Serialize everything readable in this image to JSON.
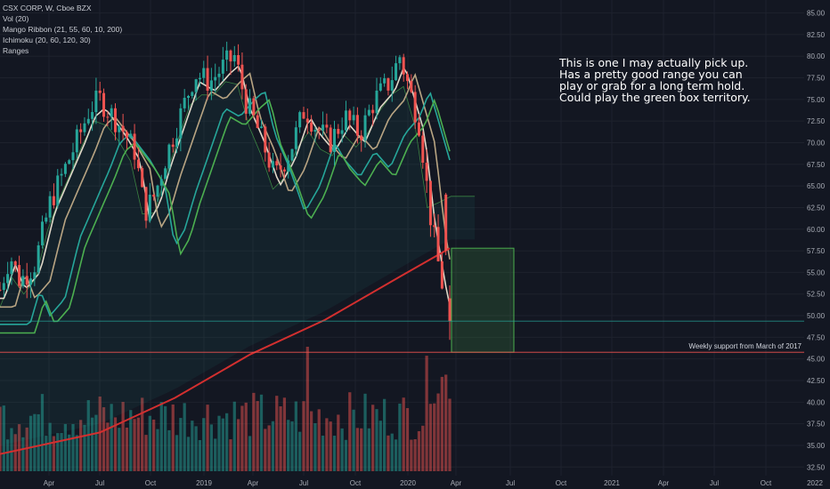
{
  "legend": {
    "symbol": "CSX CORP, W, Cboe BZX",
    "vol": "Vol (20)",
    "ribbon": "Mango Ribbon (21, 55, 60, 10, 200)",
    "ichimoku": "Ichimoku (20, 60, 120, 30)",
    "ranges": "Ranges"
  },
  "annotation": "This is one I may actually pick up.  Has a pretty good range you can play or grab for a long term hold.  Could play the green box territory.",
  "support_label": "Weekly support from March of 2017",
  "colors": {
    "background": "#131722",
    "up": "#26a69a",
    "down": "#ef5350",
    "ma200": "#d32f2f",
    "box": "#4caf50",
    "price_tag": "#26a69a",
    "support_tag": "#ef5350"
  },
  "chart_data": {
    "type": "candlestick",
    "x_tick_labels": [
      "Apr",
      "Jul",
      "Oct",
      "2019",
      "Apr",
      "Jul",
      "Oct",
      "2020",
      "Apr",
      "Jul",
      "Oct",
      "2021",
      "Apr",
      "Jul",
      "Oct",
      "2022"
    ],
    "y_tick_labels": [
      "32.50",
      "35.00",
      "37.50",
      "40.00",
      "42.50",
      "45.00",
      "47.50",
      "50.00",
      "52.50",
      "55.00",
      "57.50",
      "60.00",
      "62.50",
      "65.00",
      "67.50",
      "70.00",
      "72.50",
      "75.00",
      "77.50",
      "80.00",
      "82.50",
      "85.00"
    ],
    "y_range": [
      31.5,
      86.5
    ],
    "last_price": "49.37",
    "support_price": "45.77",
    "green_box": {
      "from": "2020-04",
      "to": "2020-07",
      "top": 57.8,
      "bottom": 45.77
    },
    "price_path": [
      {
        "t": 0,
        "v": 53
      },
      {
        "t": 0.02,
        "v": 57
      },
      {
        "t": 0.04,
        "v": 54
      },
      {
        "t": 0.07,
        "v": 56
      },
      {
        "t": 0.1,
        "v": 63
      },
      {
        "t": 0.13,
        "v": 67
      },
      {
        "t": 0.16,
        "v": 71
      },
      {
        "t": 0.18,
        "v": 74
      },
      {
        "t": 0.2,
        "v": 75
      },
      {
        "t": 0.24,
        "v": 72
      },
      {
        "t": 0.27,
        "v": 69
      },
      {
        "t": 0.29,
        "v": 62
      },
      {
        "t": 0.31,
        "v": 64
      },
      {
        "t": 0.33,
        "v": 68
      },
      {
        "t": 0.36,
        "v": 73
      },
      {
        "t": 0.39,
        "v": 78
      },
      {
        "t": 0.42,
        "v": 77
      },
      {
        "t": 0.45,
        "v": 79
      },
      {
        "t": 0.47,
        "v": 80
      },
      {
        "t": 0.49,
        "v": 75
      },
      {
        "t": 0.52,
        "v": 71
      },
      {
        "t": 0.55,
        "v": 66
      },
      {
        "t": 0.58,
        "v": 69
      },
      {
        "t": 0.61,
        "v": 74
      },
      {
        "t": 0.63,
        "v": 72
      },
      {
        "t": 0.66,
        "v": 70
      },
      {
        "t": 0.69,
        "v": 73
      },
      {
        "t": 0.72,
        "v": 71
      },
      {
        "t": 0.75,
        "v": 75
      },
      {
        "t": 0.78,
        "v": 77
      },
      {
        "t": 0.8,
        "v": 80
      },
      {
        "t": 0.82,
        "v": 76
      },
      {
        "t": 0.84,
        "v": 72
      },
      {
        "t": 0.86,
        "v": 62
      },
      {
        "t": 0.88,
        "v": 55
      },
      {
        "t": 0.9,
        "v": 49.4
      }
    ],
    "ma200": [
      {
        "t": 0,
        "v": 34
      },
      {
        "t": 0.2,
        "v": 36.5
      },
      {
        "t": 0.35,
        "v": 40.5
      },
      {
        "t": 0.5,
        "v": 45.5
      },
      {
        "t": 0.65,
        "v": 49.5
      },
      {
        "t": 0.8,
        "v": 54.5
      },
      {
        "t": 0.9,
        "v": 57.8
      }
    ]
  }
}
